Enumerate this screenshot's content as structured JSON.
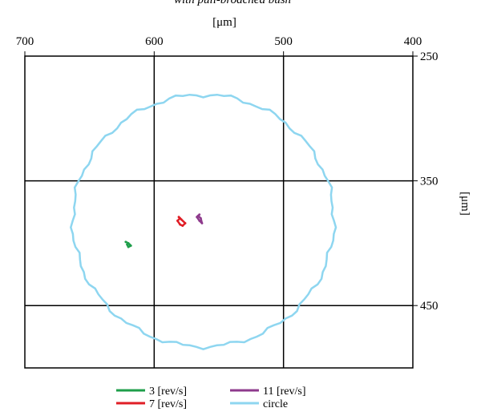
{
  "chart_data": {
    "type": "scatter",
    "title": "with pull-broached bush",
    "xlabel": "[μm]",
    "ylabel": "[μm]",
    "xlim": [
      700,
      400
    ],
    "ylim": [
      250,
      500
    ],
    "x_ticks": [
      700,
      600,
      500,
      400
    ],
    "y_ticks": [
      250,
      350,
      450
    ],
    "grid": true,
    "legend_position": "bottom",
    "series": [
      {
        "name": "3 [rev/s]",
        "color": "#1e9e4a",
        "x": [
          622,
          620,
          619,
          618,
          620,
          621
        ],
        "y": [
          399,
          400,
          401,
          402,
          403,
          401
        ]
      },
      {
        "name": "7 [rev/s]",
        "color": "#e01e26",
        "x": [
          580,
          582,
          580,
          578,
          576,
          579,
          581
        ],
        "y": [
          380,
          382,
          385,
          386,
          384,
          381,
          379
        ]
      },
      {
        "name": "11 [rev/s]",
        "color": "#8e3a8c",
        "x": [
          565,
          567,
          565,
          563,
          564,
          566
        ],
        "y": [
          377,
          379,
          382,
          384,
          380,
          378
        ]
      },
      {
        "name": "circle",
        "color": "#8ed6f0",
        "center": [
          562,
          382
        ],
        "radius": 101
      }
    ]
  }
}
